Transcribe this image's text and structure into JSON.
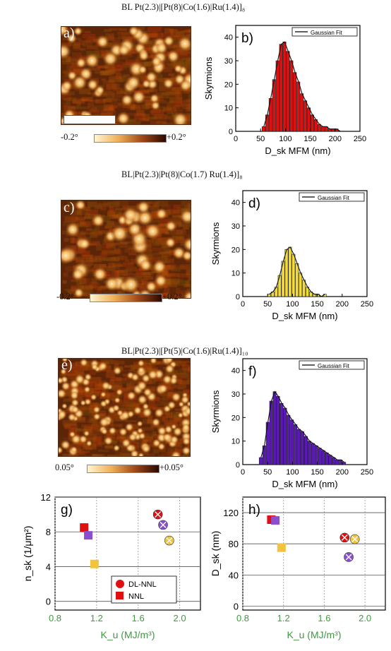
{
  "colors": {
    "afm_dark": "#5a2508",
    "afm_light": "#fff0c0",
    "red": "#e01010",
    "yellow": "#f3dc3a",
    "purple": "#5a18b8",
    "green_axis": "#3f9a3f",
    "square_yellow": "#f2c33c",
    "square_purple": "#8a4fd0",
    "fit_line": "#111111"
  },
  "panels": [
    {
      "title": "BL Pt(2.3)|[Pt(8)|Co(1.6)|Ru(1.4)]₈",
      "afm_label": "a)",
      "cbar_min": "-0.2°",
      "cbar_max": "+0.2°",
      "seed": 11,
      "density": 60,
      "blob": 9
    },
    {
      "title": "BL|Pt(2.3)|Pt(8)|Co(1.7) Ru(1.4)]₈",
      "afm_label": "c)",
      "cbar_min": "-0.2°",
      "cbar_max": "+0.2°",
      "seed": 23,
      "density": 42,
      "blob": 10
    },
    {
      "title": "BL|Pt(2.3)|[Pt(5)|Co(1.6)|Ru(1.4)]₁₀",
      "afm_label": "e)",
      "cbar_min": "0.05°",
      "cbar_max": "+0.05°",
      "seed": 37,
      "density": 140,
      "blob": 6
    }
  ],
  "chart_data": [
    {
      "type": "bar",
      "label": "b)",
      "legend": "Gaussian Fit",
      "xlabel": "D_sk MFM (nm)",
      "ylabel": "Skyrmions",
      "xlim": [
        0,
        250
      ],
      "ylim": [
        0,
        45
      ],
      "xticks": [
        0,
        50,
        100,
        150,
        200,
        250
      ],
      "yticks": [
        0,
        10,
        20,
        30,
        40
      ],
      "bin_width": 7,
      "x": [
        53,
        60,
        67,
        74,
        81,
        88,
        95,
        102,
        109,
        116,
        123,
        130,
        137,
        144,
        151,
        158,
        165,
        172,
        179,
        186,
        193,
        200,
        207
      ],
      "values": [
        2,
        7,
        14,
        22,
        30,
        37,
        38,
        34,
        30,
        25,
        21,
        16,
        13,
        10,
        7,
        5,
        3,
        2,
        2,
        1,
        1,
        1,
        0
      ]
    },
    {
      "type": "bar",
      "label": "d)",
      "legend": "Gaussian Fit",
      "xlabel": "D_sk MFM (nm)",
      "ylabel": "Skyrmions",
      "xlim": [
        0,
        250
      ],
      "ylim": [
        0,
        45
      ],
      "xticks": [
        0,
        50,
        100,
        150,
        200,
        250
      ],
      "yticks": [
        0,
        10,
        20,
        30,
        40
      ],
      "bin_width": 7,
      "x": [
        50,
        57,
        64,
        71,
        78,
        85,
        92,
        99,
        106,
        113,
        120,
        127,
        134,
        141,
        148,
        155,
        162
      ],
      "values": [
        1,
        2,
        4,
        9,
        15,
        20,
        21,
        18,
        14,
        10,
        7,
        4,
        2,
        1,
        1,
        0,
        1
      ]
    },
    {
      "type": "bar",
      "label": "f)",
      "legend": "Gaussian Fit",
      "xlabel": "D_sk MFM (nm)",
      "ylabel": "Skyrmions",
      "xlim": [
        0,
        250
      ],
      "ylim": [
        0,
        45
      ],
      "xticks": [
        0,
        50,
        100,
        150,
        200,
        250
      ],
      "yticks": [
        0,
        10,
        20,
        30,
        40
      ],
      "bin_width": 7,
      "x": [
        33,
        40,
        47,
        54,
        61,
        68,
        75,
        82,
        89,
        96,
        103,
        110,
        117,
        124,
        131,
        138,
        145,
        152,
        159,
        166,
        173,
        180,
        187,
        194,
        201
      ],
      "values": [
        3,
        8,
        18,
        27,
        31,
        29,
        26,
        24,
        21,
        19,
        17,
        15,
        14,
        12,
        10,
        9,
        8,
        7,
        6,
        5,
        4,
        3,
        2,
        2,
        1
      ]
    },
    {
      "type": "scatter",
      "label": "g)",
      "xlabel": "K_u (MJ/m³)",
      "ylabel": "n_sk (1/μm²)",
      "xlim": [
        0.8,
        2.2
      ],
      "ylim": [
        -1,
        12
      ],
      "xticks": [
        "0.8",
        "1.2",
        "1.6",
        "2.0"
      ],
      "yticks": [
        "0",
        "4",
        "8",
        "12"
      ],
      "legend": [
        "DL-NNL",
        "NNL"
      ],
      "series": [
        {
          "name": "NNL",
          "points": [
            {
              "x": 1.08,
              "y": 8.5,
              "c": "red"
            },
            {
              "x": 1.12,
              "y": 7.6,
              "c": "square_purple"
            },
            {
              "x": 1.18,
              "y": 4.3,
              "c": "square_yellow"
            }
          ]
        },
        {
          "name": "DL-NNL",
          "points": [
            {
              "x": 1.79,
              "y": 10.0,
              "c": "red"
            },
            {
              "x": 1.84,
              "y": 8.8,
              "c": "square_purple"
            },
            {
              "x": 1.9,
              "y": 7.0,
              "c": "square_yellow"
            }
          ]
        }
      ]
    },
    {
      "type": "scatter",
      "label": "h)",
      "xlabel": "K_u (MJ/m³)",
      "ylabel": "D_sk (nm)",
      "xlim": [
        0.8,
        2.2
      ],
      "ylim": [
        -5,
        140
      ],
      "xticks": [
        "0.8",
        "1.2",
        "1.6",
        "2.0"
      ],
      "yticks": [
        "0",
        "40",
        "80",
        "120"
      ],
      "series": [
        {
          "name": "NNL",
          "points": [
            {
              "x": 1.08,
              "y": 111,
              "c": "red"
            },
            {
              "x": 1.12,
              "y": 110,
              "c": "square_purple"
            },
            {
              "x": 1.18,
              "y": 75,
              "c": "square_yellow"
            }
          ]
        },
        {
          "name": "DL-NNL",
          "points": [
            {
              "x": 1.8,
              "y": 88,
              "c": "red"
            },
            {
              "x": 1.84,
              "y": 63,
              "c": "square_purple"
            },
            {
              "x": 1.9,
              "y": 86,
              "c": "square_yellow"
            }
          ]
        }
      ]
    }
  ]
}
